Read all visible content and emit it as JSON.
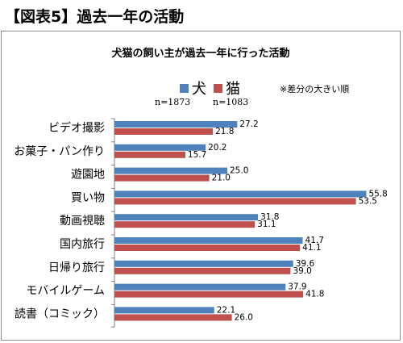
{
  "page_title": "【図表5】過去一年の活動",
  "colors": {
    "dog": "#4F81BD",
    "cat": "#C0504D",
    "axis": "#808080"
  },
  "chart_data": {
    "type": "bar",
    "orientation": "horizontal",
    "title": "犬猫の飼い主が過去一年に行った活動",
    "note": "※差分の大きい順",
    "categories": [
      "ビデオ撮影",
      "お菓子・パン作り",
      "遊園地",
      "買い物",
      "動画視聴",
      "国内旅行",
      "日帰り旅行",
      "モバイルゲーム",
      "読書（コミック）"
    ],
    "series": [
      {
        "name": "犬",
        "n": "n=1873",
        "values": [
          27.2,
          20.2,
          25.0,
          55.8,
          31.8,
          41.7,
          39.6,
          37.9,
          22.1
        ]
      },
      {
        "name": "猫",
        "n": "n=1083",
        "values": [
          21.8,
          15.7,
          21.0,
          53.5,
          31.1,
          41.1,
          39.0,
          41.8,
          26.0
        ]
      }
    ],
    "xlim": [
      0,
      60
    ],
    "value_format": "one_decimal",
    "legend_position": "top",
    "grid": false
  }
}
